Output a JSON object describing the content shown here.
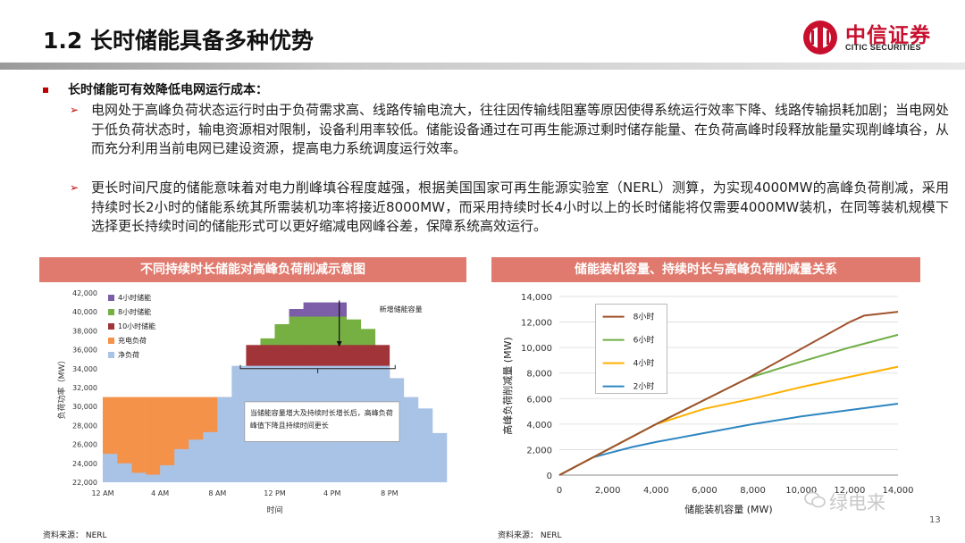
{
  "header": {
    "title": "1.2 长时储能具备多种优势",
    "logo_name": "中信证券",
    "logo_sub": "CITIC SECURITIES"
  },
  "content": {
    "main_bullet": "长时储能可有效降低电网运行成本：",
    "sub_bullets": [
      "电网处于高峰负荷状态运行时由于负荷需求高、线路传输电流大，往往因传输线阻塞等原因使得系统运行效率下降、线路传输损耗加剧；当电网处于低负荷状态时，输电资源相对限制，设备利用率较低。储能设备通过在可再生能源过剩时储存能量、在负荷高峰时段释放能量实现削峰填谷，从而充分利用当前电网已建设资源，提高电力系统调度运行效率。",
      "更长时间尺度的储能意味着对电力削峰填谷程度越强，根据美国国家可再生能源实验室（NERL）测算，为实现4000MW的高峰负荷削减，采用持续时长2小时的储能系统其所需装机功率将接近8000MW，而采用持续时长4小时以上的长时储能将仅需要4000MW装机，在同等装机规模下选择更长持续时间的储能形式可以更好缩减电网峰谷差，保障系统高效运行。"
    ]
  },
  "footer": {
    "source_left": "资料来源：  NERL",
    "source_right": "资料来源：  NERL",
    "page_number": "13",
    "watermark": "绿电来"
  },
  "chart_data": [
    {
      "type": "area",
      "panel_title": "不同持续时长储能对高峰负荷削减示意图",
      "xlabel": "时间",
      "ylabel": "负荷功率（MW）",
      "ylim": [
        22000,
        42000
      ],
      "yticks": [
        22000,
        24000,
        26000,
        28000,
        30000,
        32000,
        34000,
        36000,
        38000,
        40000,
        42000
      ],
      "ytick_labels": [
        "22,000",
        "24,000",
        "26,000",
        "28,000",
        "30,000",
        "32,000",
        "34,000",
        "36,000",
        "38,000",
        "40,000",
        "42,000"
      ],
      "x_tick_labels": [
        "12 AM",
        "4 AM",
        "8 AM",
        "12 PM",
        "4 PM",
        "8 PM"
      ],
      "hours": [
        0,
        1,
        2,
        3,
        4,
        5,
        6,
        7,
        8,
        9,
        10,
        11,
        12,
        13,
        14,
        15,
        16,
        17,
        18,
        19,
        20,
        21,
        22,
        23
      ],
      "net_load": [
        25000,
        24000,
        23000,
        22800,
        23800,
        25500,
        26500,
        27300,
        31000,
        34300,
        34300,
        34300,
        34300,
        34300,
        34300,
        34300,
        34300,
        34300,
        34300,
        34300,
        33000,
        31000,
        29800,
        27200
      ],
      "charging": [
        31000,
        31000,
        31000,
        31000,
        31000,
        31000,
        31000,
        31000,
        31000,
        0,
        0,
        0,
        0,
        0,
        0,
        0,
        0,
        0,
        0,
        0,
        0,
        0,
        0,
        0
      ],
      "storage_10h": [
        0,
        0,
        0,
        0,
        0,
        0,
        0,
        0,
        0,
        0,
        36500,
        36500,
        36500,
        36500,
        36500,
        36500,
        36500,
        36500,
        36500,
        36500,
        0,
        0,
        0,
        0
      ],
      "storage_8h": [
        0,
        0,
        0,
        0,
        0,
        0,
        0,
        0,
        0,
        0,
        0,
        37200,
        38700,
        39500,
        39500,
        39500,
        39500,
        39200,
        38200,
        0,
        0,
        0,
        0,
        0
      ],
      "storage_4h": [
        0,
        0,
        0,
        0,
        0,
        0,
        0,
        0,
        0,
        0,
        0,
        0,
        0,
        40300,
        41000,
        41000,
        41000,
        0,
        0,
        0,
        0,
        0,
        0,
        0
      ],
      "legend": [
        {
          "name": "4小时储能",
          "color": "#7b5ea7"
        },
        {
          "name": "8小时储能",
          "color": "#76b043"
        },
        {
          "name": "10小时储能",
          "color": "#a13438"
        },
        {
          "name": "充电负荷",
          "color": "#f4924a"
        },
        {
          "name": "净负荷",
          "color": "#a9c3e6"
        }
      ],
      "annotation_added": "新增储能容量",
      "annotation_box": "当储能容量增大及持续时长增长后，高峰负荷峰值下降且持续时间更长"
    },
    {
      "type": "line",
      "panel_title": "储能装机容量、持续时长与高峰负荷削减量关系",
      "xlabel": "储能装机容量 (MW)",
      "ylabel": "高峰负荷削减量 (MW)",
      "xlim": [
        0,
        14000
      ],
      "ylim": [
        0,
        14000
      ],
      "xticks": [
        0,
        2000,
        4000,
        6000,
        8000,
        10000,
        12000,
        14000
      ],
      "xtick_labels": [
        "0",
        "2,000",
        "4,000",
        "6,000",
        "8,000",
        "10,000",
        "12,000",
        "14,000"
      ],
      "yticks": [
        0,
        2000,
        4000,
        6000,
        8000,
        10000,
        12000,
        14000
      ],
      "ytick_labels": [
        "0",
        "2,000",
        "4,000",
        "6,000",
        "8,000",
        "10,000",
        "12,000",
        "14,000"
      ],
      "series": [
        {
          "name": "8小时",
          "color": "#a0522d",
          "x": [
            0,
            1400,
            4000,
            7800,
            10000,
            12000,
            12600,
            14000
          ],
          "y": [
            0,
            1400,
            4000,
            7600,
            9900,
            12000,
            12500,
            12800
          ]
        },
        {
          "name": "6小时",
          "color": "#70ad47",
          "x": [
            0,
            1400,
            4000,
            7800,
            10000,
            12000,
            14000
          ],
          "y": [
            0,
            1400,
            4000,
            7600,
            8900,
            10000,
            11000
          ]
        },
        {
          "name": "4小时",
          "color": "#ffb000",
          "x": [
            0,
            1400,
            4000,
            6000,
            8000,
            10000,
            12000,
            14000
          ],
          "y": [
            0,
            1400,
            4000,
            5200,
            6000,
            6900,
            7700,
            8500
          ]
        },
        {
          "name": "2小时",
          "color": "#2e86c1",
          "x": [
            0,
            1400,
            2000,
            3000,
            4000,
            6000,
            8000,
            10000,
            12000,
            14000
          ],
          "y": [
            0,
            1400,
            1700,
            2200,
            2600,
            3300,
            4000,
            4600,
            5100,
            5600
          ]
        }
      ]
    }
  ]
}
